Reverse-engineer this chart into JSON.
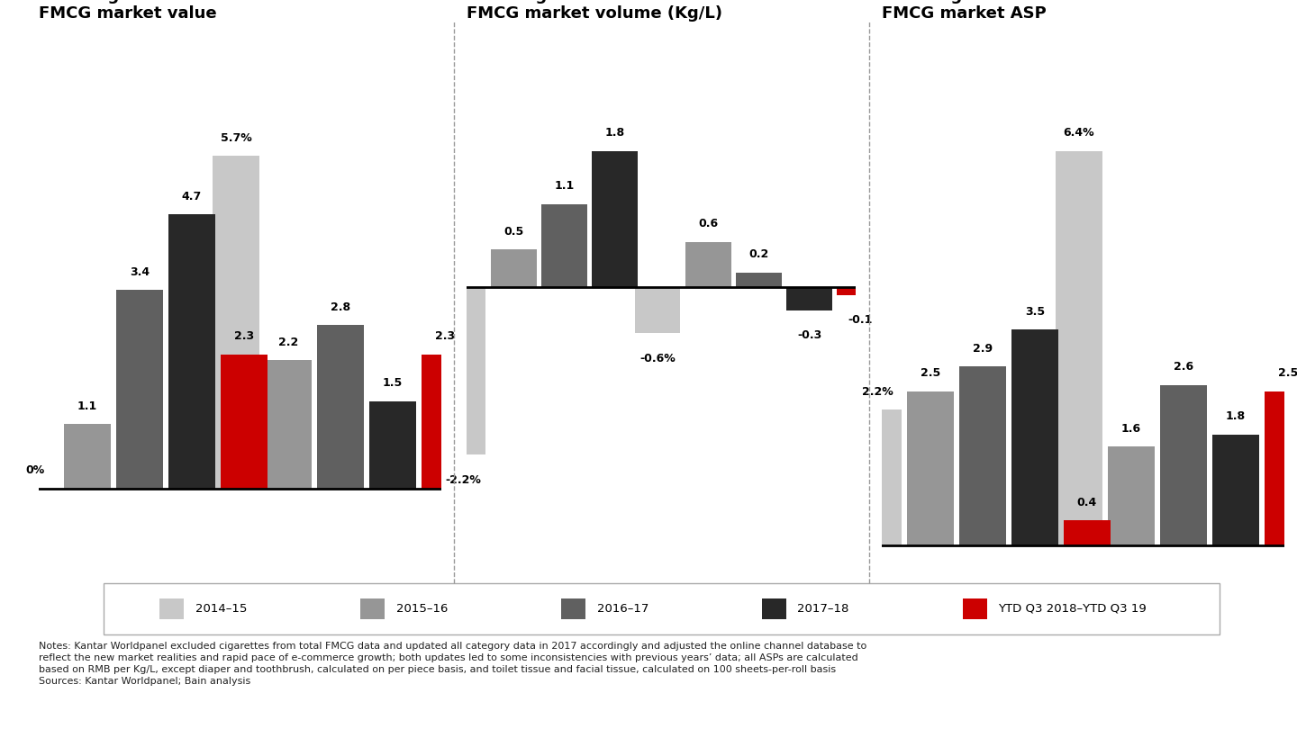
{
  "chart1": {
    "title": "Annual growth of urban\nFMCG market value",
    "packaged_food": [
      0.0,
      1.1,
      3.4,
      4.7,
      2.3
    ],
    "beverage": [
      5.7,
      2.2,
      2.8,
      1.5,
      2.3
    ],
    "packaged_food_labels": [
      "0%",
      "1.1",
      "3.4",
      "4.7",
      "2.3"
    ],
    "beverage_labels": [
      "5.7%",
      "2.2",
      "2.8",
      "1.5",
      "2.3"
    ],
    "ylim": [
      -1.5,
      8.0
    ]
  },
  "chart2": {
    "title": "Annual growth of urban\nFMCG market volume (Kg/L)",
    "packaged_food": [
      -2.2,
      0.5,
      1.1,
      1.8,
      0.0
    ],
    "beverage": [
      -0.6,
      0.6,
      0.2,
      -0.3,
      -0.1
    ],
    "packaged_food_labels": [
      "-2.2%",
      "0.5",
      "1.1",
      "1.8",
      ""
    ],
    "beverage_labels": [
      "-0.6%",
      "0.6",
      "0.2",
      "-0.3",
      "-0.1"
    ],
    "ylim": [
      -3.8,
      3.5
    ]
  },
  "chart3": {
    "title": "Annual growth of urban\nFMCG market ASP",
    "packaged_food": [
      2.2,
      2.5,
      2.9,
      3.5,
      0.4
    ],
    "beverage": [
      6.4,
      1.6,
      2.6,
      1.8,
      2.5
    ],
    "packaged_food_labels": [
      "2.2%",
      "2.5",
      "2.9",
      "3.5",
      "0.4"
    ],
    "beverage_labels": [
      "6.4%",
      "1.6",
      "2.6",
      "1.8",
      "2.5"
    ],
    "ylim": [
      -0.5,
      8.5
    ]
  },
  "series_colors": [
    "#c8c8c8",
    "#969696",
    "#606060",
    "#282828",
    "#cc0000"
  ],
  "series_names": [
    "2014–15",
    "2015–16",
    "2016–17",
    "2017–18",
    "YTD Q3 2018–YTD Q3 19"
  ],
  "notes_line1": "Notes: Kantar Worldpanel excluded cigarettes from total FMCG data and updated all category data in 2017 accordingly and adjusted the online channel database to",
  "notes_line2": "reflect the new market realities and rapid pace of e-commerce growth; both updates led to some inconsistencies with previous years’ data; all ASPs are calculated",
  "notes_line3": "based on RMB per Kg/L, except diaper and toothbrush, calculated on per piece basis, and toilet tissue and facial tissue, calculated on 100 sheets-per-roll basis",
  "notes_line4": "Sources: Kantar Worldpanel; Bain analysis",
  "background_color": "#ffffff",
  "group_label_color": "#aaaaaa",
  "bar_width": 0.13
}
